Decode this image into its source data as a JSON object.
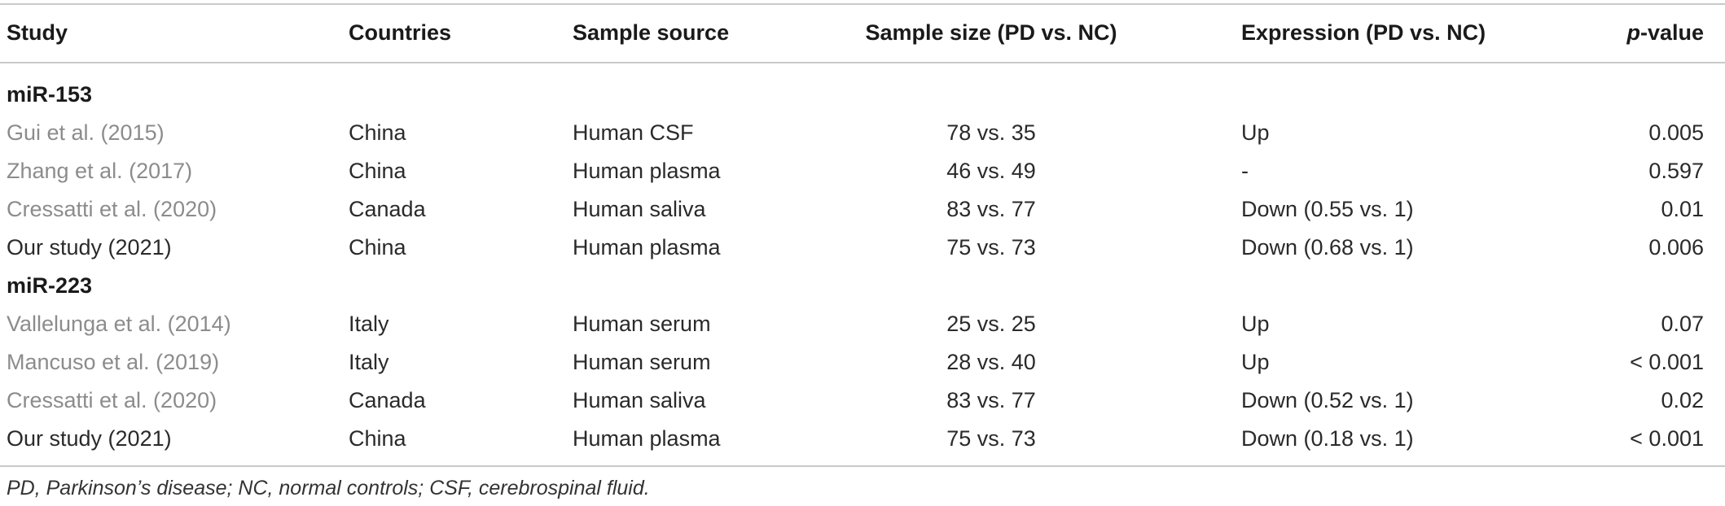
{
  "headers": {
    "study": "Study",
    "countries": "Countries",
    "sample_source": "Sample source",
    "sample_size": "Sample size (PD vs. NC)",
    "expression": "Expression (PD vs. NC)",
    "p_value_italic": "p",
    "p_value_rest": "-value"
  },
  "groups": [
    {
      "label": "miR-153",
      "rows": [
        {
          "study": "Gui et al. (2015)",
          "country": "China",
          "source": "Human CSF",
          "size": "78 vs. 35",
          "expression": "Up",
          "p": "0.005"
        },
        {
          "study": "Zhang et al. (2017)",
          "country": "China",
          "source": "Human plasma",
          "size": "46 vs. 49",
          "expression": "-",
          "p": "0.597"
        },
        {
          "study": "Cressatti et al. (2020)",
          "country": "Canada",
          "source": "Human saliva",
          "size": "83 vs. 77",
          "expression": "Down (0.55 vs. 1)",
          "p": "0.01"
        },
        {
          "study": "Our study (2021)",
          "country": "China",
          "source": "Human plasma",
          "size": "75 vs. 73",
          "expression": "Down (0.68 vs. 1)",
          "p": "0.006"
        }
      ]
    },
    {
      "label": "miR-223",
      "rows": [
        {
          "study": "Vallelunga et al. (2014)",
          "country": "Italy",
          "source": "Human serum",
          "size": "25 vs. 25",
          "expression": "Up",
          "p": "0.07"
        },
        {
          "study": "Mancuso et al. (2019)",
          "country": "Italy",
          "source": "Human serum",
          "size": "28 vs. 40",
          "expression": "Up",
          "p": "< 0.001"
        },
        {
          "study": "Cressatti et al. (2020)",
          "country": "Canada",
          "source": "Human saliva",
          "size": "83 vs. 77",
          "expression": "Down (0.52 vs. 1)",
          "p": "0.02"
        },
        {
          "study": "Our study (2021)",
          "country": "China",
          "source": "Human plasma",
          "size": "75 vs. 73",
          "expression": "Down (0.18 vs. 1)",
          "p": "< 0.001"
        }
      ]
    }
  ],
  "footnote": "PD, Parkinson’s disease; NC, normal controls; CSF, cerebrospinal fluid."
}
